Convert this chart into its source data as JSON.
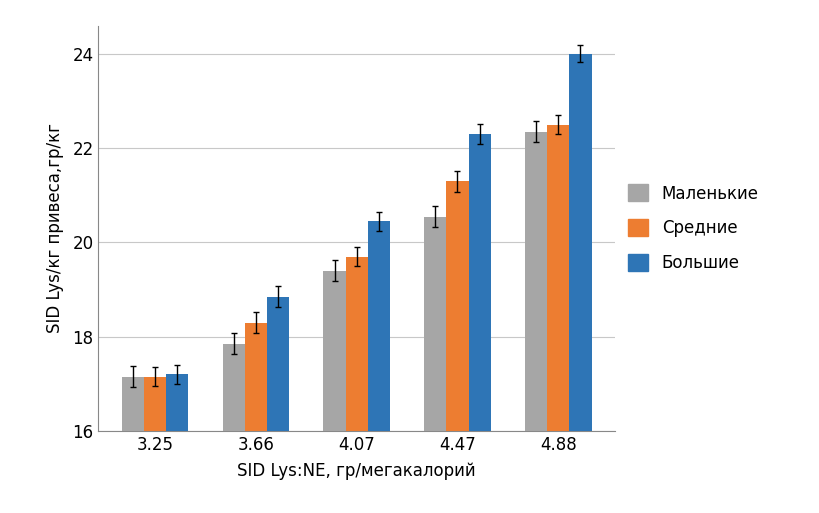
{
  "categories": [
    "3.25",
    "3.66",
    "4.07",
    "4.47",
    "4.88"
  ],
  "series": {
    "Маленькие": {
      "values": [
        17.15,
        17.85,
        19.4,
        20.55,
        22.35
      ],
      "errors": [
        0.22,
        0.22,
        0.22,
        0.22,
        0.22
      ],
      "color": "#a6a6a6"
    },
    "Средние": {
      "values": [
        17.15,
        18.3,
        19.7,
        21.3,
        22.5
      ],
      "errors": [
        0.2,
        0.22,
        0.2,
        0.22,
        0.2
      ],
      "color": "#ed7d31"
    },
    "Большие": {
      "values": [
        17.2,
        18.85,
        20.45,
        22.3,
        24.0
      ],
      "errors": [
        0.2,
        0.22,
        0.2,
        0.22,
        0.18
      ],
      "color": "#2e75b6"
    }
  },
  "xlabel": "SID Lys:NE, гр/мегакалорий",
  "ylabel": "SID Lys/кг привеса,гр/кг",
  "ylim": [
    16,
    24.6
  ],
  "yticks": [
    16,
    18,
    20,
    22,
    24
  ],
  "legend_order": [
    "Маленькие",
    "Средние",
    "Большие"
  ],
  "bar_width": 0.22,
  "background_color": "#ffffff",
  "grid_color": "#c8c8c8",
  "ylabel_fontsize": 12,
  "xlabel_fontsize": 12,
  "tick_fontsize": 12,
  "legend_fontsize": 12
}
